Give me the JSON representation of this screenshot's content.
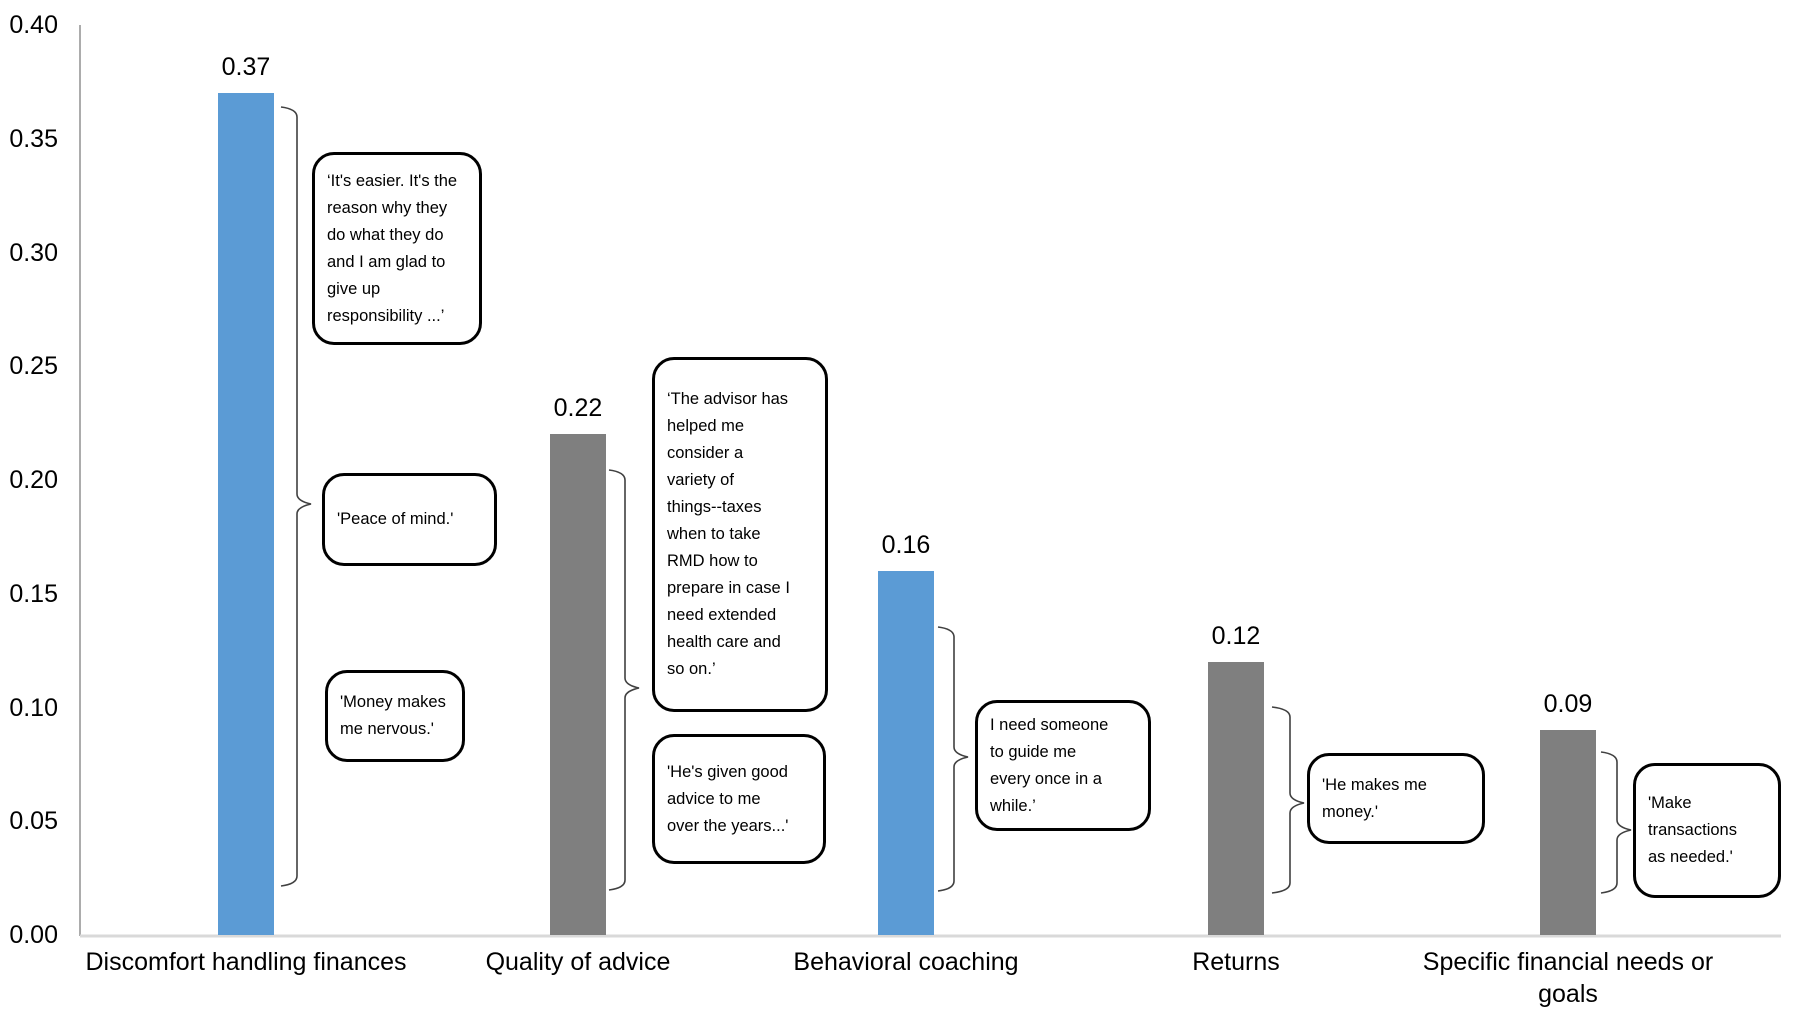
{
  "chart_data": {
    "type": "bar",
    "title": "",
    "xlabel": "",
    "ylabel": "",
    "categories": [
      "Discomfort handling finances",
      "Quality of advice",
      "Behavioral coaching",
      "Returns",
      "Specific financial needs or goals"
    ],
    "xtick_display": [
      "Discomfort handling finances",
      "Quality of advice",
      "Behavioral coaching",
      "Returns",
      "Specific financial needs or\ngoals"
    ],
    "values": [
      0.37,
      0.22,
      0.16,
      0.12,
      0.09
    ],
    "value_labels": [
      "0.37",
      "0.22",
      "0.16",
      "0.12",
      "0.09"
    ],
    "bar_colors": [
      "#5B9BD5",
      "#7F7F7F",
      "#5B9BD5",
      "#7F7F7F",
      "#7F7F7F"
    ],
    "ylim": [
      0,
      0.4
    ],
    "yticks": [
      "0.40",
      "0.35",
      "0.30",
      "0.25",
      "0.20",
      "0.15",
      "0.10",
      "0.05",
      "0.00"
    ],
    "grid": false,
    "legend": false,
    "axis_color": "#909090",
    "baseline_color": "#D9D9D9",
    "brace_color": "#404040",
    "callouts": [
      {
        "bar": "Discomfort handling finances",
        "text": "‘It's easier. It's the\nreason why they\ndo what they do\nand I am glad to\ngive up\nresponsibility ...’"
      },
      {
        "bar": "Discomfort handling finances",
        "text": "'Peace of mind.'"
      },
      {
        "bar": "Discomfort handling finances",
        "text": "'Money makes\nme nervous.'"
      },
      {
        "bar": "Quality of advice",
        "text": "‘The advisor has\nhelped me\nconsider a\nvariety of\nthings--taxes\nwhen to take\nRMD how to\nprepare in case I\nneed extended\nhealth care and\nso on.’"
      },
      {
        "bar": "Quality of advice",
        "text": "'He's given good\nadvice to me\nover the years...'"
      },
      {
        "bar": "Behavioral coaching",
        "text": "I need someone\nto guide me\nevery once in a\nwhile.’"
      },
      {
        "bar": "Returns",
        "text": "'He makes me\nmoney.'"
      },
      {
        "bar": "Specific financial needs or goals",
        "text": "'Make\ntransactions\nas needed.'"
      }
    ]
  }
}
